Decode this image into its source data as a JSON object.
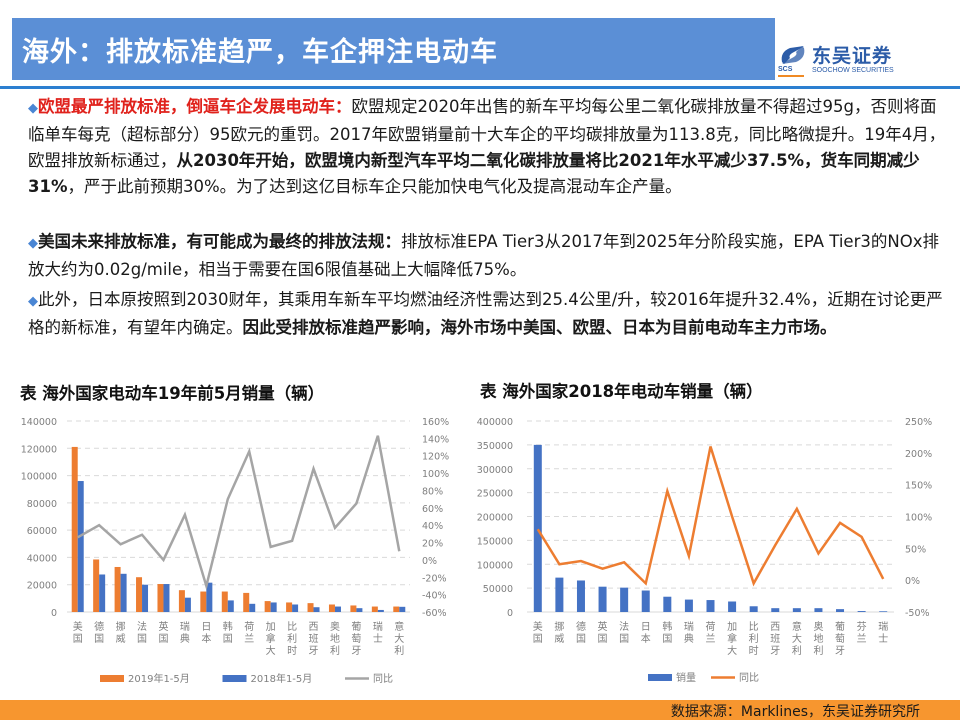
{
  "header": {
    "title": "海外：排放标准趋严，车企押注电动车",
    "logo": {
      "cn": "东吴证券",
      "en": "SOOCHOW SECURITIES",
      "abbr": "SCS"
    }
  },
  "paragraphs": [
    {
      "lead": "欧盟最严排放标准，倒逼车企发展电动车：",
      "text1": "欧盟规定2020年出售的新车平均每公里二氧化碳排放量不得超过95g，否则将面临单车每克（超标部分）95欧元的重罚。2017年欧盟销量前十大车企的平均碳排放量为113.8克，同比略微提升。19年4月，欧盟排放新标通过，",
      "bold1": "从2030年开始，欧盟境内新型汽车平均二氧化碳排放量将比2021年水平减少37.5%，货车同期减少31%",
      "text2": "，严于此前预期30%。为了达到这亿目标车企只能加快电气化及提高混动车企产量。"
    },
    {
      "lead": "美国未来排放标准，有可能成为最终的排放法规：",
      "text1": "排放标准EPA Tier3从2017年到2025年分阶段实施，EPA Tier3的NOx排放大约为0.02g/mile，相当于需要在国6限值基础上大幅降低75%。"
    },
    {
      "text1": "此外，日本原按照到2030财年，其乘用车新车平均燃油经济性需达到25.4公里/升，较2016年提升32.4%，近期在讨论更严格的新标准，有望年内确定。",
      "bold1": "因此受排放标准趋严影响，海外市场中美国、欧盟、日本为目前电动车主力市场。"
    }
  ],
  "chart_data": [
    {
      "type": "bar",
      "title": "表  海外国家电动车19年前5月销量（辆）",
      "categories": [
        "美国",
        "德国",
        "挪威",
        "法国",
        "英国",
        "瑞典",
        "日本",
        "韩国",
        "荷兰",
        "加拿大",
        "比利时",
        "西班牙",
        "奥地利",
        "葡萄牙",
        "瑞士",
        "意大利"
      ],
      "series": [
        {
          "name": "2019年1-5月",
          "type": "bar",
          "axis": "left",
          "color": "#ed7d31",
          "values": [
            121000,
            38500,
            33000,
            25500,
            20500,
            16000,
            15000,
            15000,
            14000,
            8000,
            7000,
            6500,
            5500,
            4800,
            4000,
            4000
          ]
        },
        {
          "name": "2018年1-5月",
          "type": "bar",
          "axis": "left",
          "color": "#4472c4",
          "values": [
            96000,
            27500,
            28000,
            20000,
            20500,
            10500,
            21500,
            8500,
            6000,
            7000,
            5500,
            3500,
            4000,
            2800,
            1500,
            3800
          ]
        },
        {
          "name": "同比",
          "type": "line",
          "axis": "right",
          "color": "#a5a5a5",
          "values": [
            26,
            40,
            18,
            29,
            0,
            52,
            -30,
            70,
            125,
            15,
            22,
            105,
            37,
            65,
            143,
            10
          ]
        }
      ],
      "left_axis": {
        "min": 0,
        "max": 140000,
        "ticks": [
          "0",
          "20000",
          "40000",
          "60000",
          "80000",
          "100000",
          "120000",
          "140000"
        ]
      },
      "right_axis": {
        "min": -60,
        "max": 160,
        "ticks": [
          "-60%",
          "-40%",
          "-20%",
          "0%",
          "20%",
          "40%",
          "60%",
          "80%",
          "100%",
          "120%",
          "140%",
          "160%"
        ]
      },
      "grid": true,
      "legend_position": "bottom"
    },
    {
      "type": "bar",
      "title": "表  海外国家2018年电动车销量（辆）",
      "categories": [
        "美国",
        "挪威",
        "德国",
        "英国",
        "法国",
        "日本",
        "韩国",
        "瑞典",
        "荷兰",
        "加拿大",
        "比利时",
        "西班牙",
        "意大利",
        "奥地利",
        "葡萄牙",
        "芬兰",
        "瑞士"
      ],
      "series": [
        {
          "name": "销量",
          "type": "bar",
          "axis": "left",
          "color": "#4472c4",
          "values": [
            350000,
            72000,
            66000,
            53000,
            51000,
            45000,
            32000,
            26000,
            25000,
            22000,
            12000,
            8000,
            8000,
            8000,
            6000,
            2000,
            1500
          ]
        },
        {
          "name": "同比",
          "type": "line",
          "axis": "right",
          "color": "#ed7d31",
          "values": [
            80,
            25,
            30,
            18,
            28,
            -5,
            140,
            38,
            210,
            100,
            -5,
            55,
            112,
            42,
            90,
            68,
            2
          ]
        }
      ],
      "left_axis": {
        "min": 0,
        "max": 400000,
        "ticks": [
          "0",
          "50000",
          "100000",
          "150000",
          "200000",
          "250000",
          "300000",
          "350000",
          "400000"
        ]
      },
      "right_axis": {
        "min": -50,
        "max": 250,
        "ticks": [
          "-50%",
          "0%",
          "50%",
          "100%",
          "150%",
          "200%",
          "250%"
        ]
      },
      "grid": true,
      "legend_position": "bottom"
    }
  ],
  "footer": {
    "source": "数据来源：Marklines，东吴证券研究所"
  }
}
